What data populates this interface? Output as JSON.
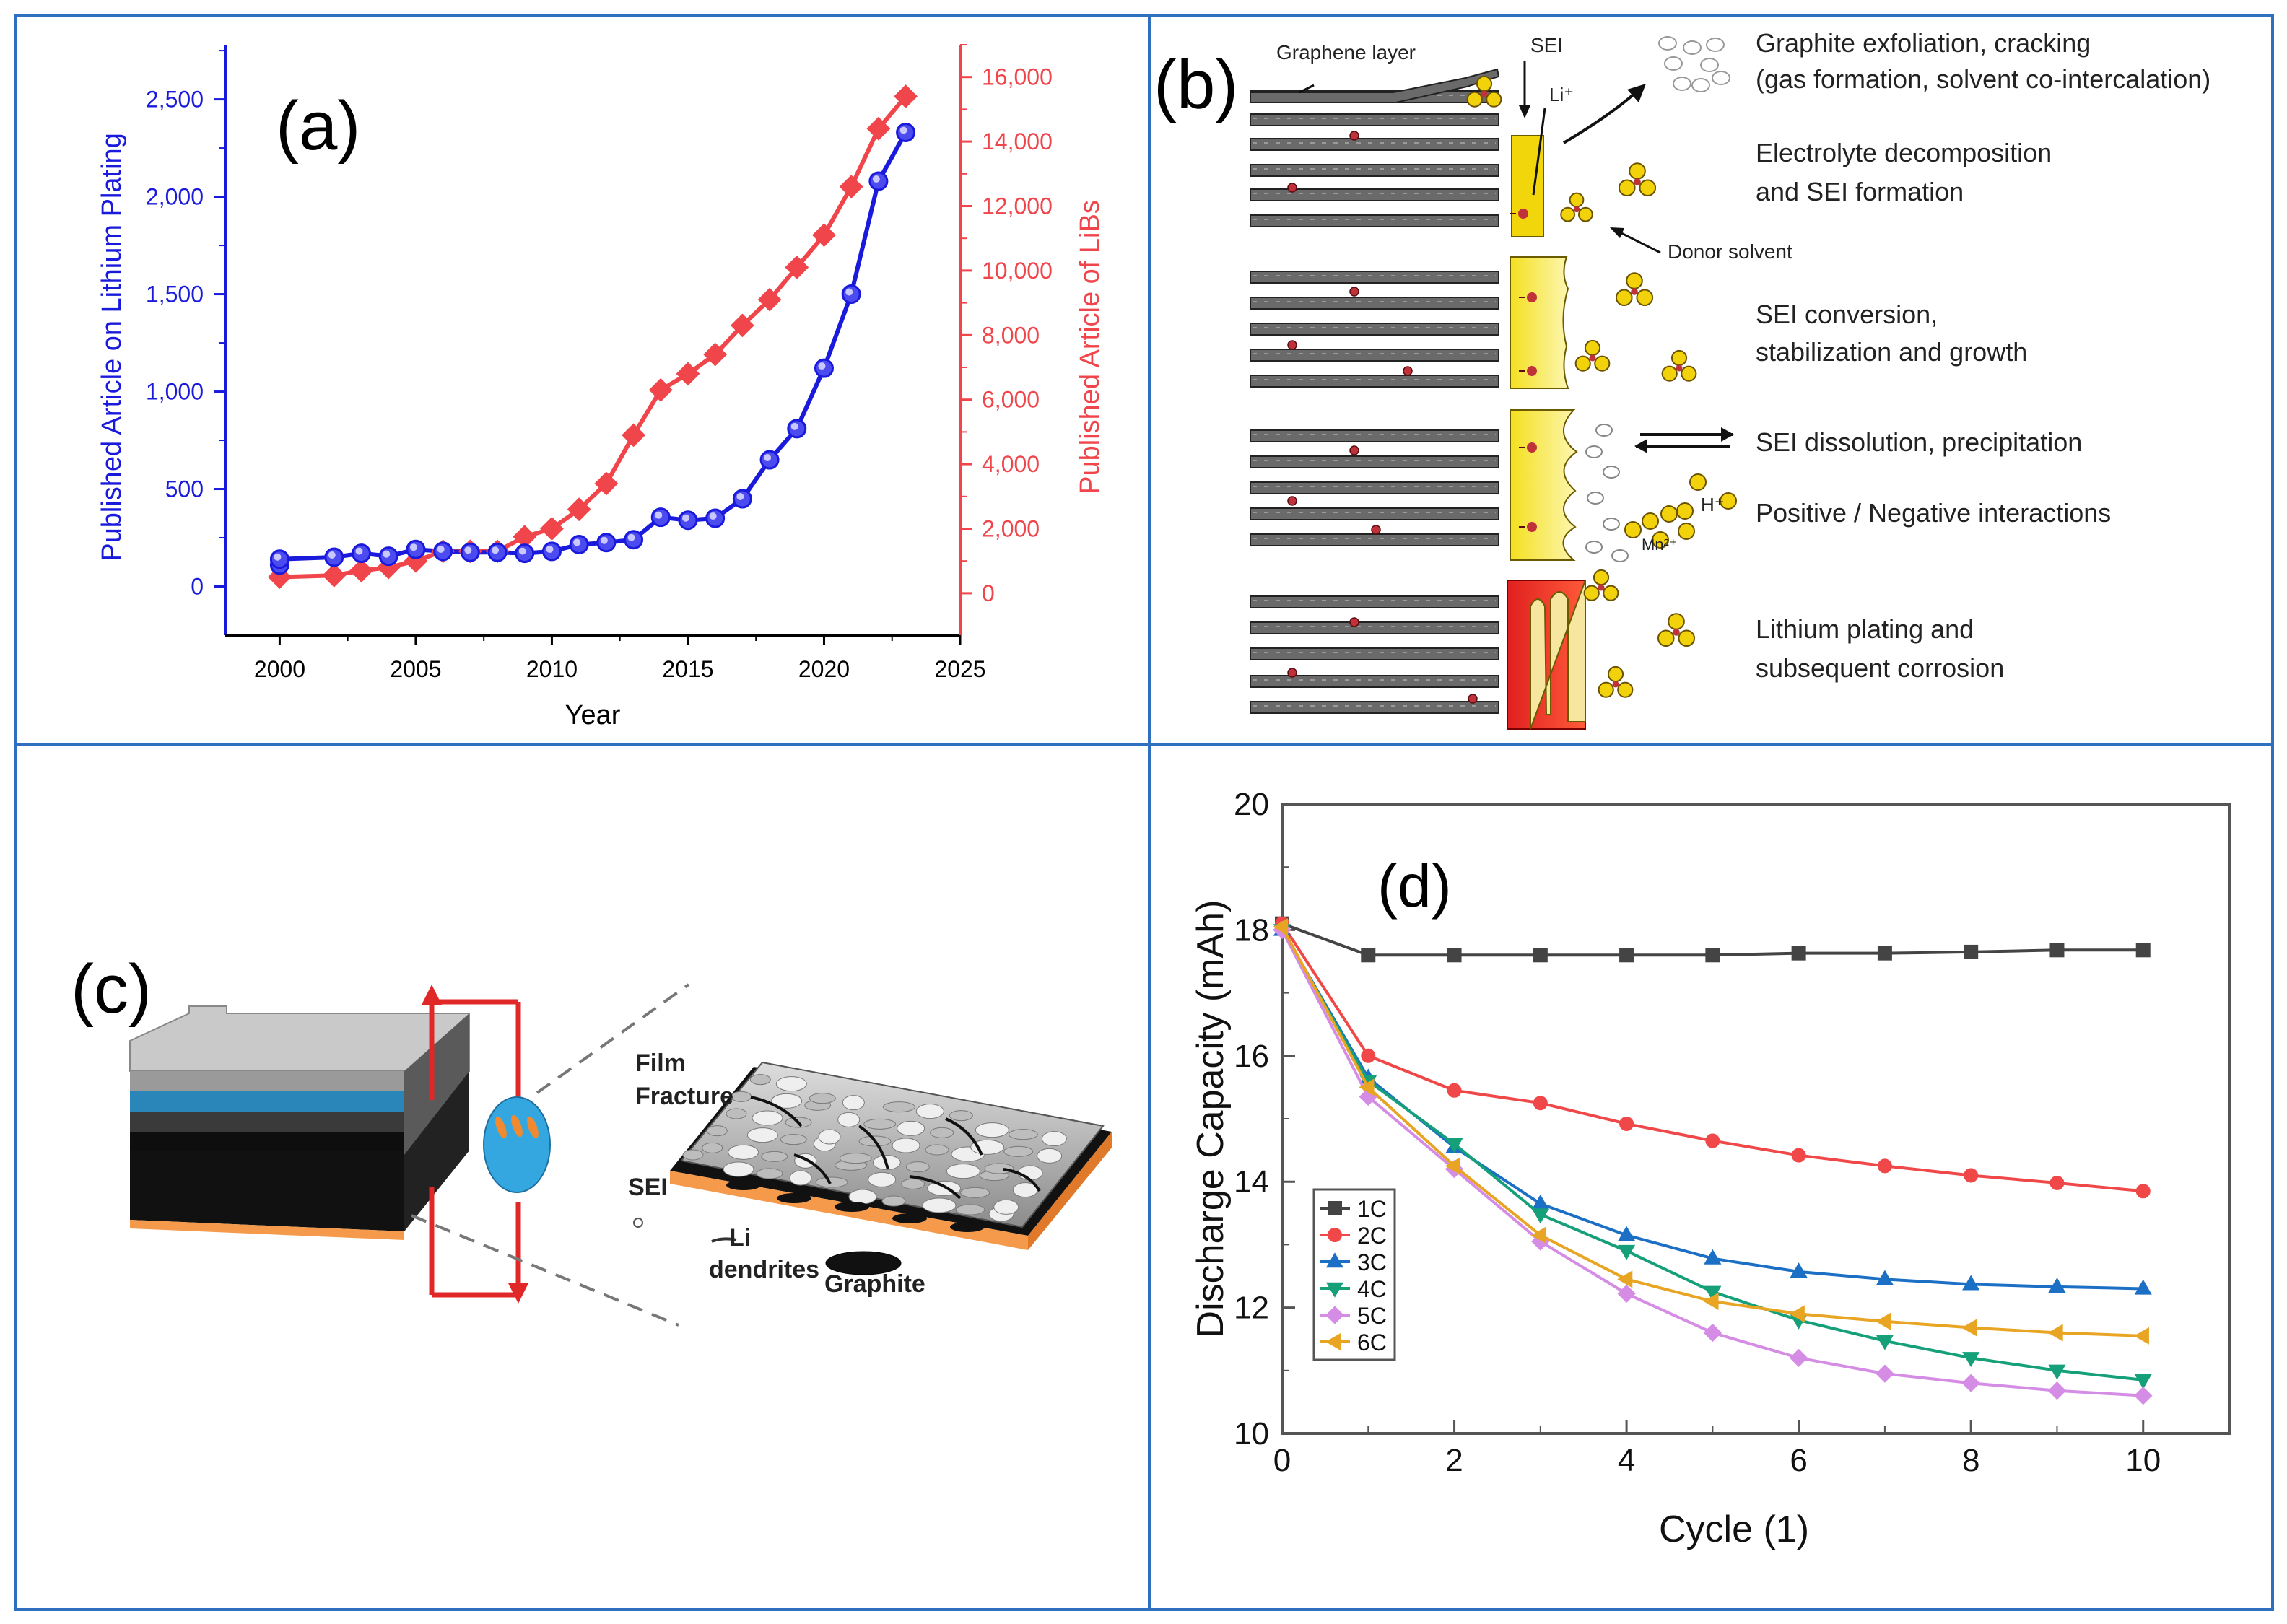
{
  "panels": {
    "a": {
      "label": "(a)"
    },
    "b": {
      "label": "(b)",
      "labels": {
        "graphene_layer": "Graphene layer",
        "sei": "SEI",
        "li_plus": "Li⁺",
        "donor_solvent": "Donor solvent",
        "h_plus": "H⁺",
        "mn_ion": "Mn²⁺"
      },
      "steps": [
        {
          "line1": "Graphite exfoliation, cracking",
          "line2": "(gas formation, solvent co-intercalation)"
        },
        {
          "line1": "Electrolyte decomposition",
          "line2": "and SEI formation"
        },
        {
          "line1": "SEI conversion,",
          "line2": "stabilization and growth"
        },
        {
          "line1": "SEI dissolution, precipitation",
          "line2": ""
        },
        {
          "line1": "Positive / Negative interactions",
          "line2": ""
        },
        {
          "line1": "Lithium plating and",
          "line2": "subsequent corrosion"
        }
      ]
    },
    "c": {
      "label": "(c)",
      "labels": {
        "film": "Film",
        "fracture": "Fracture",
        "sei": "SEI",
        "li": "Li",
        "dendrites": "dendrites",
        "graphite": "Graphite"
      }
    },
    "d": {
      "label": "(d)"
    }
  },
  "colors": {
    "border": "#2f6fc0",
    "blue": "#1a1adc",
    "red": "#f0454b",
    "c1": "#444444",
    "c2": "#f04848",
    "c3": "#1b6fc4",
    "c4": "#16a07a",
    "c5": "#d58ce4",
    "c6": "#e8a523"
  },
  "chart_data": [
    {
      "type": "line",
      "panel": "a",
      "title": "",
      "xlabel": "Year",
      "ylabel": "Published Article on Lithium Plating",
      "y2label": "Published Article of LiBs",
      "xlim": [
        1998,
        2025
      ],
      "xticks": [
        2000,
        2005,
        2010,
        2015,
        2020,
        2025
      ],
      "ylim": [
        -250,
        2780
      ],
      "yticks": [
        0,
        500,
        1000,
        1500,
        2000,
        2500
      ],
      "ytick_labels": [
        "0",
        "500",
        "1,000",
        "1,500",
        "2,000",
        "2,500"
      ],
      "y2lim": [
        -1300,
        17000
      ],
      "y2ticks": [
        0,
        2000,
        4000,
        6000,
        8000,
        10000,
        12000,
        14000,
        16000
      ],
      "y2tick_labels": [
        "0",
        "2,000",
        "4,000",
        "6,000",
        "8,000",
        "10,000",
        "12,000",
        "14,000",
        "16,000"
      ],
      "series": [
        {
          "name": "Published Article on Lithium Plating",
          "axis": "left",
          "marker": "circle",
          "x": [
            2000,
            2000,
            2002,
            2003,
            2004,
            2005,
            2006,
            2007,
            2008,
            2009,
            2010,
            2011,
            2012,
            2013,
            2014,
            2015,
            2016,
            2017,
            2018,
            2019,
            2020,
            2021,
            2022,
            2023
          ],
          "y": [
            110,
            140,
            150,
            170,
            155,
            190,
            180,
            175,
            175,
            170,
            180,
            215,
            225,
            240,
            355,
            340,
            350,
            450,
            650,
            810,
            1120,
            1500,
            2080,
            2330
          ]
        },
        {
          "name": "Published Article of LiBs",
          "axis": "right",
          "marker": "diamond",
          "x": [
            2000,
            2002,
            2003,
            2004,
            2005,
            2006,
            2007,
            2008,
            2009,
            2010,
            2011,
            2012,
            2013,
            2014,
            2015,
            2016,
            2017,
            2018,
            2019,
            2020,
            2021,
            2022,
            2023
          ],
          "y": [
            500,
            550,
            700,
            800,
            1000,
            1300,
            1300,
            1300,
            1750,
            2000,
            2600,
            3400,
            4900,
            6300,
            6800,
            7400,
            8300,
            9100,
            10100,
            11100,
            12600,
            14400,
            15400
          ]
        }
      ]
    },
    {
      "type": "line",
      "panel": "d",
      "title": "",
      "xlabel": "Cycle (1)",
      "ylabel": "Discharge Capacity (mAh)",
      "xlim": [
        0,
        11
      ],
      "xticks": [
        0,
        2,
        4,
        6,
        8,
        10
      ],
      "ylim": [
        10,
        20
      ],
      "yticks": [
        10,
        12,
        14,
        16,
        18,
        20
      ],
      "legend": "left",
      "x": [
        0,
        1,
        2,
        3,
        4,
        5,
        6,
        7,
        8,
        9,
        10
      ],
      "series": [
        {
          "name": "1C",
          "marker": "square",
          "values": [
            18.1,
            17.6,
            17.6,
            17.6,
            17.6,
            17.6,
            17.63,
            17.63,
            17.65,
            17.68,
            17.68
          ]
        },
        {
          "name": "2C",
          "marker": "circle",
          "values": [
            18.1,
            16.0,
            15.45,
            15.25,
            14.92,
            14.65,
            14.42,
            14.25,
            14.1,
            13.98,
            13.85
          ]
        },
        {
          "name": "3C",
          "marker": "triangle-up",
          "values": [
            18.0,
            15.65,
            14.55,
            13.65,
            13.15,
            12.78,
            12.57,
            12.45,
            12.37,
            12.33,
            12.3
          ]
        },
        {
          "name": "4C",
          "marker": "triangle-down",
          "values": [
            18.0,
            15.6,
            14.6,
            13.48,
            12.9,
            12.25,
            11.8,
            11.47,
            11.2,
            11.0,
            10.85
          ]
        },
        {
          "name": "5C",
          "marker": "diamond",
          "values": [
            18.0,
            15.35,
            14.2,
            13.05,
            12.22,
            11.6,
            11.2,
            10.95,
            10.8,
            10.68,
            10.6
          ]
        },
        {
          "name": "6C",
          "marker": "triangle-left",
          "values": [
            18.05,
            15.5,
            14.25,
            13.15,
            12.45,
            12.1,
            11.9,
            11.78,
            11.68,
            11.6,
            11.55
          ]
        }
      ]
    }
  ]
}
